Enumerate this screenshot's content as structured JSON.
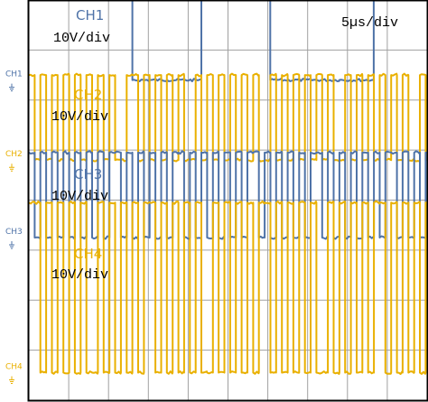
{
  "chart_data": {
    "type": "line",
    "title": "",
    "timebase": "5µs/div",
    "grid": true,
    "grid_divisions": {
      "x": 10,
      "y": 8
    },
    "colors": {
      "ch1": "#4f73a8",
      "ch2": "#e9b000",
      "ch3": "#4f73a8",
      "ch4": "#e9b000",
      "grid": "#a0a0a0",
      "frame": "#000000"
    },
    "series": [
      {
        "name": "CH1",
        "scale": "10V/div",
        "marker": "CH1",
        "levels": [
          0,
          1.7
        ],
        "unit_period_div": 0.866,
        "pattern": [
          1,
          1,
          1,
          0,
          0,
          1,
          1,
          0,
          0,
          0,
          1,
          1,
          0,
          0,
          0
        ]
      },
      {
        "name": "CH2",
        "scale": "10V/div",
        "marker": "CH2",
        "levels": [
          0,
          1.7
        ],
        "unit_period_div": 0.1444,
        "pattern": [
          1,
          0,
          1,
          0,
          1,
          0,
          1,
          0,
          1,
          0,
          1,
          0,
          1,
          0,
          1,
          0,
          0,
          1,
          1,
          0,
          1,
          0,
          1,
          0,
          1,
          0,
          1,
          0,
          0,
          1,
          0,
          1,
          0,
          1,
          0,
          1,
          0,
          1,
          0,
          1,
          0,
          0,
          1,
          0,
          1,
          0,
          1,
          0,
          1,
          0,
          1,
          0,
          1,
          0,
          0,
          1,
          0,
          1,
          0,
          1,
          0,
          1,
          0,
          1,
          0,
          1,
          0,
          0,
          1,
          0,
          1,
          0,
          1,
          0,
          1,
          0,
          1,
          0,
          1,
          0,
          1,
          0,
          0,
          1,
          0,
          1,
          0,
          1,
          0,
          1,
          0
        ]
      },
      {
        "name": "CH3",
        "scale": "10V/div",
        "marker": "CH3",
        "levels": [
          0,
          1.7
        ],
        "unit_period_div": 0.1444,
        "pattern": [
          1,
          0,
          1,
          0,
          1,
          0,
          1,
          0,
          1,
          0,
          1,
          0,
          1,
          0,
          1,
          1,
          0,
          1,
          0,
          1,
          0,
          1,
          0,
          1,
          0,
          1,
          1,
          0,
          1,
          0,
          1,
          0,
          1,
          0,
          1,
          0,
          1,
          0,
          1,
          1,
          0,
          1,
          0,
          1,
          0,
          1,
          0,
          1,
          0,
          1,
          1,
          0,
          1,
          0,
          1,
          0,
          1,
          0,
          1,
          0,
          1,
          0,
          1,
          1,
          0,
          1,
          0,
          1,
          0,
          1,
          0,
          1,
          0,
          1,
          1,
          0,
          1,
          0,
          1,
          0,
          1,
          0,
          1,
          0,
          1,
          1,
          0,
          1,
          0,
          1,
          0
        ]
      },
      {
        "name": "CH4",
        "scale": "10V/div",
        "marker": "CH4",
        "levels": [
          0,
          3.4
        ],
        "unit_period_div": 0.1444,
        "pattern": [
          1,
          1,
          0,
          1,
          0,
          1,
          0,
          1,
          0,
          1,
          0,
          0,
          1,
          0,
          1,
          0,
          1,
          0,
          1,
          0,
          1,
          1,
          0,
          1,
          0,
          1,
          0,
          1,
          0,
          1,
          0,
          0,
          1,
          0,
          1,
          0,
          1,
          0,
          1,
          0,
          1,
          1,
          0,
          1,
          0,
          1,
          0,
          1,
          0,
          1,
          0,
          0,
          1,
          0,
          1,
          0,
          1,
          0,
          1,
          0,
          1,
          1,
          0,
          1,
          0,
          1,
          0,
          1,
          0,
          1,
          0,
          0,
          1,
          0,
          1,
          0,
          1,
          0,
          1,
          0,
          1,
          1,
          0,
          1,
          0,
          1,
          0,
          1,
          0,
          1,
          0
        ]
      }
    ]
  }
}
